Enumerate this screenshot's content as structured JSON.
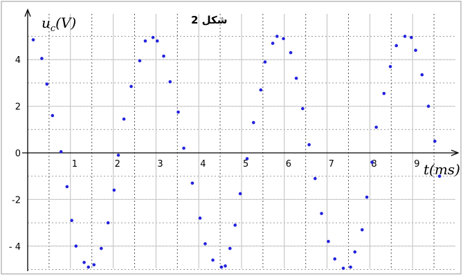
{
  "chart_data": {
    "type": "scatter",
    "title": "شكل 2",
    "xlabel": "t(ms)",
    "ylabel": "u_c(V)",
    "ylabel_main": "u",
    "ylabel_sub": "c",
    "ylabel_unit": "(V)",
    "xlim": [
      0,
      9.7
    ],
    "ylim": [
      -5.0,
      5.5
    ],
    "x_ticks": [
      1,
      2,
      3,
      4,
      5,
      6,
      7,
      8,
      9
    ],
    "x_tick_labels": [
      "1",
      "2",
      "3",
      "4",
      "5",
      "6",
      "7",
      "8",
      "9"
    ],
    "y_ticks": [
      4,
      2,
      0,
      -2,
      -4
    ],
    "y_tick_labels": [
      "4",
      "2",
      "0",
      "-2",
      "- 4"
    ],
    "grid": "dotted",
    "marker_color": "#2222dd",
    "grid_color": "#999999",
    "series": [
      {
        "x": [
          0.13,
          0.33,
          0.45,
          0.58,
          0.78,
          0.92,
          1.03,
          1.13,
          1.32,
          1.42,
          1.55,
          1.72,
          1.88,
          2.02,
          2.12,
          2.25,
          2.42,
          2.62,
          2.75,
          2.93,
          3.03,
          3.18,
          3.33,
          3.52,
          3.65,
          3.85,
          4.03,
          4.15,
          4.33,
          4.53,
          4.62,
          4.73,
          4.85,
          4.97,
          5.13,
          5.28,
          5.45,
          5.55,
          5.73,
          5.83,
          5.98,
          6.15,
          6.28,
          6.43,
          6.58,
          6.72,
          6.87,
          7.03,
          7.18,
          7.38,
          7.55,
          7.65,
          7.82,
          7.93,
          8.05,
          8.15,
          8.33,
          8.48,
          8.62,
          8.82,
          8.97,
          9.07,
          9.22,
          9.37,
          9.52,
          9.63
        ],
        "y": [
          4.85,
          4.05,
          2.95,
          1.6,
          0.05,
          -1.45,
          -2.9,
          -4.0,
          -4.7,
          -4.9,
          -4.8,
          -4.1,
          -3.0,
          -1.6,
          -0.1,
          1.45,
          2.85,
          3.95,
          4.8,
          4.95,
          4.8,
          4.15,
          3.05,
          1.75,
          0.2,
          -1.3,
          -2.8,
          -3.9,
          -4.6,
          -4.9,
          -4.85,
          -4.1,
          -3.1,
          -1.75,
          -0.25,
          1.3,
          2.7,
          3.9,
          4.7,
          5.0,
          4.9,
          4.3,
          3.2,
          1.9,
          0.35,
          -1.1,
          -2.6,
          -3.8,
          -4.55,
          -4.95,
          -4.9,
          -4.25,
          -3.3,
          -1.9,
          -0.4,
          1.1,
          2.55,
          3.7,
          4.6,
          5.0,
          4.95,
          4.4,
          3.35,
          2.0,
          0.5,
          -1.0
        ]
      }
    ]
  }
}
